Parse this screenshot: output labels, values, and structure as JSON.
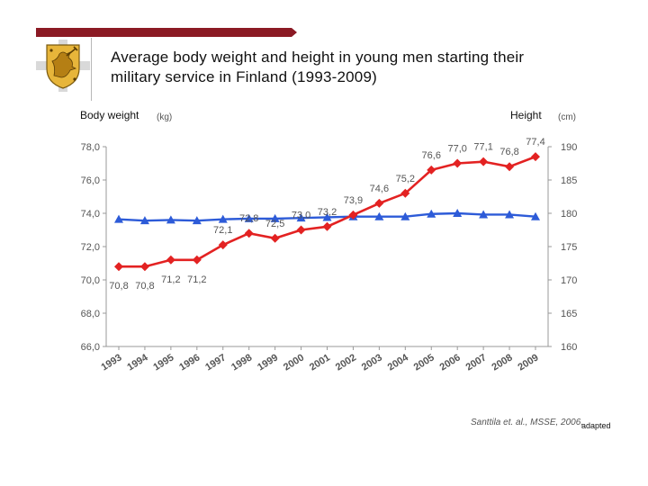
{
  "slide": {
    "title_line1": "Average body weight and height in young men starting their",
    "title_line2": "military service in Finland (1993-2009)",
    "citation": "Santtila et. al., MSSE, 2006,",
    "adapted_note": "adapted"
  },
  "colors": {
    "accent": "#8b1a24",
    "weight_series": "#e32222",
    "height_series": "#2d5bd8"
  },
  "chart_data": {
    "type": "line",
    "x": [
      "1993",
      "1994",
      "1995",
      "1996",
      "1997",
      "1998",
      "1999",
      "2000",
      "2001",
      "2002",
      "2003",
      "2004",
      "2005",
      "2006",
      "2007",
      "2008",
      "2009"
    ],
    "left_axis": {
      "label": "Body weight",
      "unit": "(kg)",
      "range": [
        66,
        78
      ],
      "ticks": [
        "66,0",
        "68,0",
        "70,0",
        "72,0",
        "74,0",
        "76,0",
        "78,0"
      ]
    },
    "right_axis": {
      "label": "Height",
      "unit": "(cm)",
      "range": [
        160,
        190
      ],
      "ticks": [
        "160",
        "165",
        "170",
        "175",
        "180",
        "185",
        "190"
      ]
    },
    "series": [
      {
        "axis": "left",
        "values": [
          70.8,
          70.8,
          71.2,
          71.2,
          72.1,
          72.8,
          72.5,
          73.0,
          73.2,
          73.9,
          74.6,
          75.2,
          76.6,
          77.0,
          77.1,
          76.8,
          77.4
        ],
        "labels": [
          "70,8",
          "70,8",
          "71,2",
          "71,2",
          "72,1",
          "72,8",
          "72,5",
          "73,0",
          "73,2",
          "73,9",
          "74,6",
          "75,2",
          "76,6",
          "77,0",
          "77,1",
          "76,8",
          "77,4"
        ]
      },
      {
        "axis": "right",
        "values": [
          179.1,
          178.9,
          179.0,
          178.9,
          179.1,
          179.2,
          179.2,
          179.3,
          179.4,
          179.5,
          179.5,
          179.5,
          179.9,
          180.0,
          179.8,
          179.8,
          179.5
        ]
      }
    ],
    "grid": false,
    "legend": "none"
  }
}
